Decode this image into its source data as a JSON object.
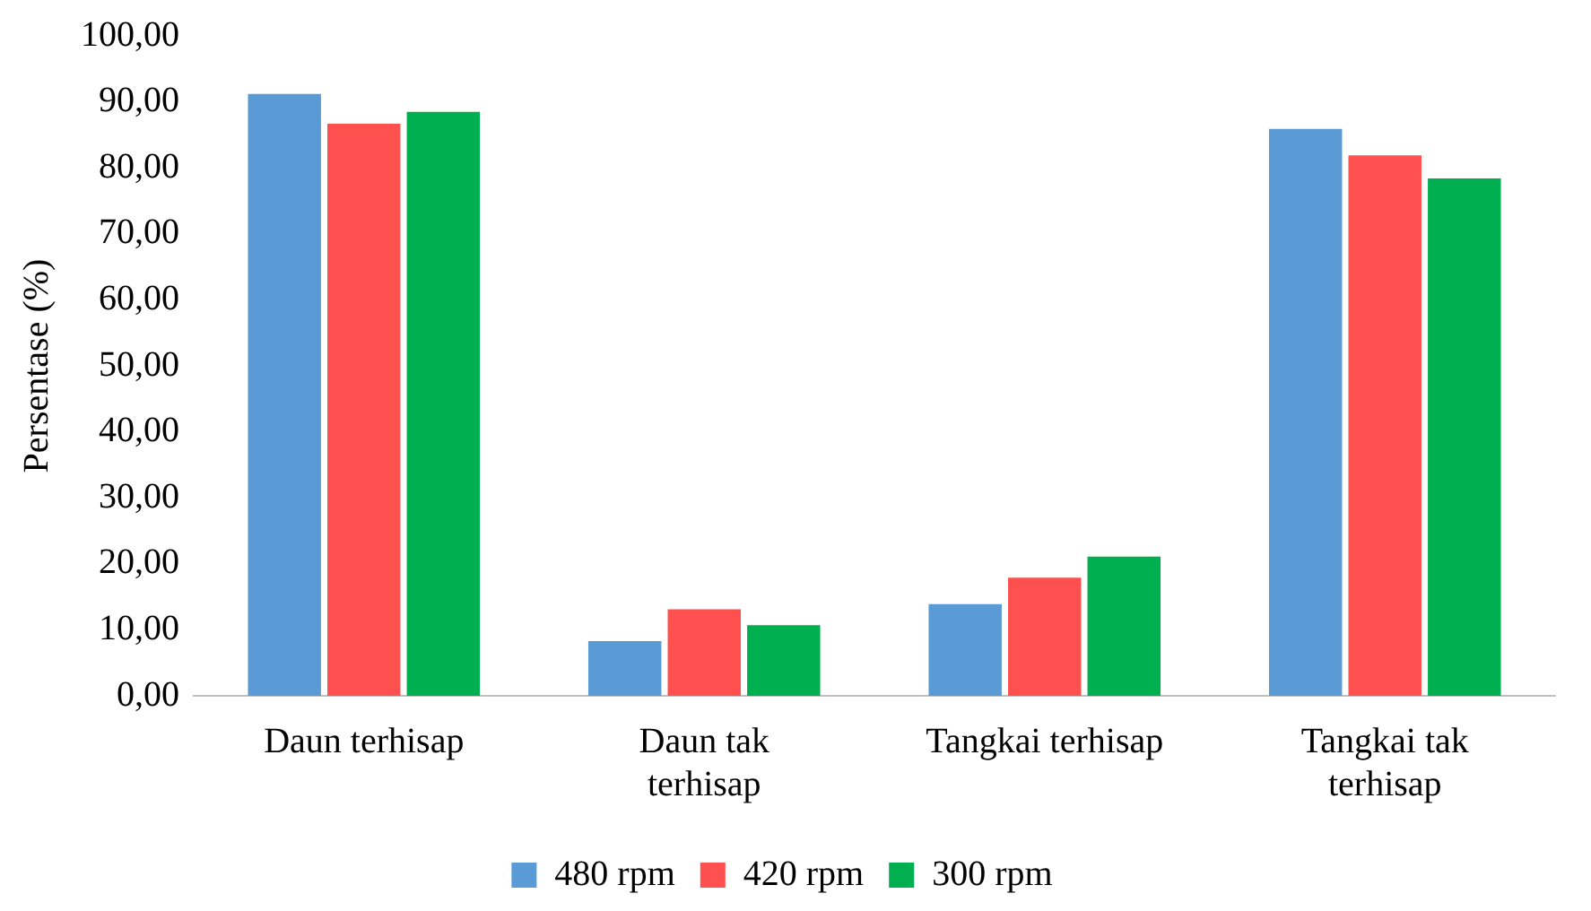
{
  "chart_data": {
    "type": "bar",
    "ylabel": "Persentase (%)",
    "categories": [
      "Daun terhisap",
      "Daun tak terhisap",
      "Tangkai terhisap",
      "Tangkai tak terhisap"
    ],
    "series": [
      {
        "name": "480 rpm",
        "color": "#5b9bd5",
        "values": [
          91.2,
          8.3,
          13.9,
          85.9
        ]
      },
      {
        "name": "420 rpm",
        "color": "#ff5050",
        "values": [
          86.7,
          13.1,
          17.9,
          81.9
        ]
      },
      {
        "name": "300 rpm",
        "color": "#00b050",
        "values": [
          88.5,
          10.7,
          21.1,
          78.4
        ]
      }
    ],
    "ylim": [
      0,
      100
    ],
    "yticks": [
      {
        "value": 0,
        "label": "0,00"
      },
      {
        "value": 10,
        "label": "10,00"
      },
      {
        "value": 20,
        "label": "20,00"
      },
      {
        "value": 30,
        "label": "30,00"
      },
      {
        "value": 40,
        "label": "40,00"
      },
      {
        "value": 50,
        "label": "50,00"
      },
      {
        "value": 60,
        "label": "60,00"
      },
      {
        "value": 70,
        "label": "70,00"
      },
      {
        "value": 80,
        "label": "80,00"
      },
      {
        "value": 90,
        "label": "90,00"
      },
      {
        "value": 100,
        "label": "100,00"
      }
    ],
    "grid": false,
    "legend": "bottom"
  }
}
